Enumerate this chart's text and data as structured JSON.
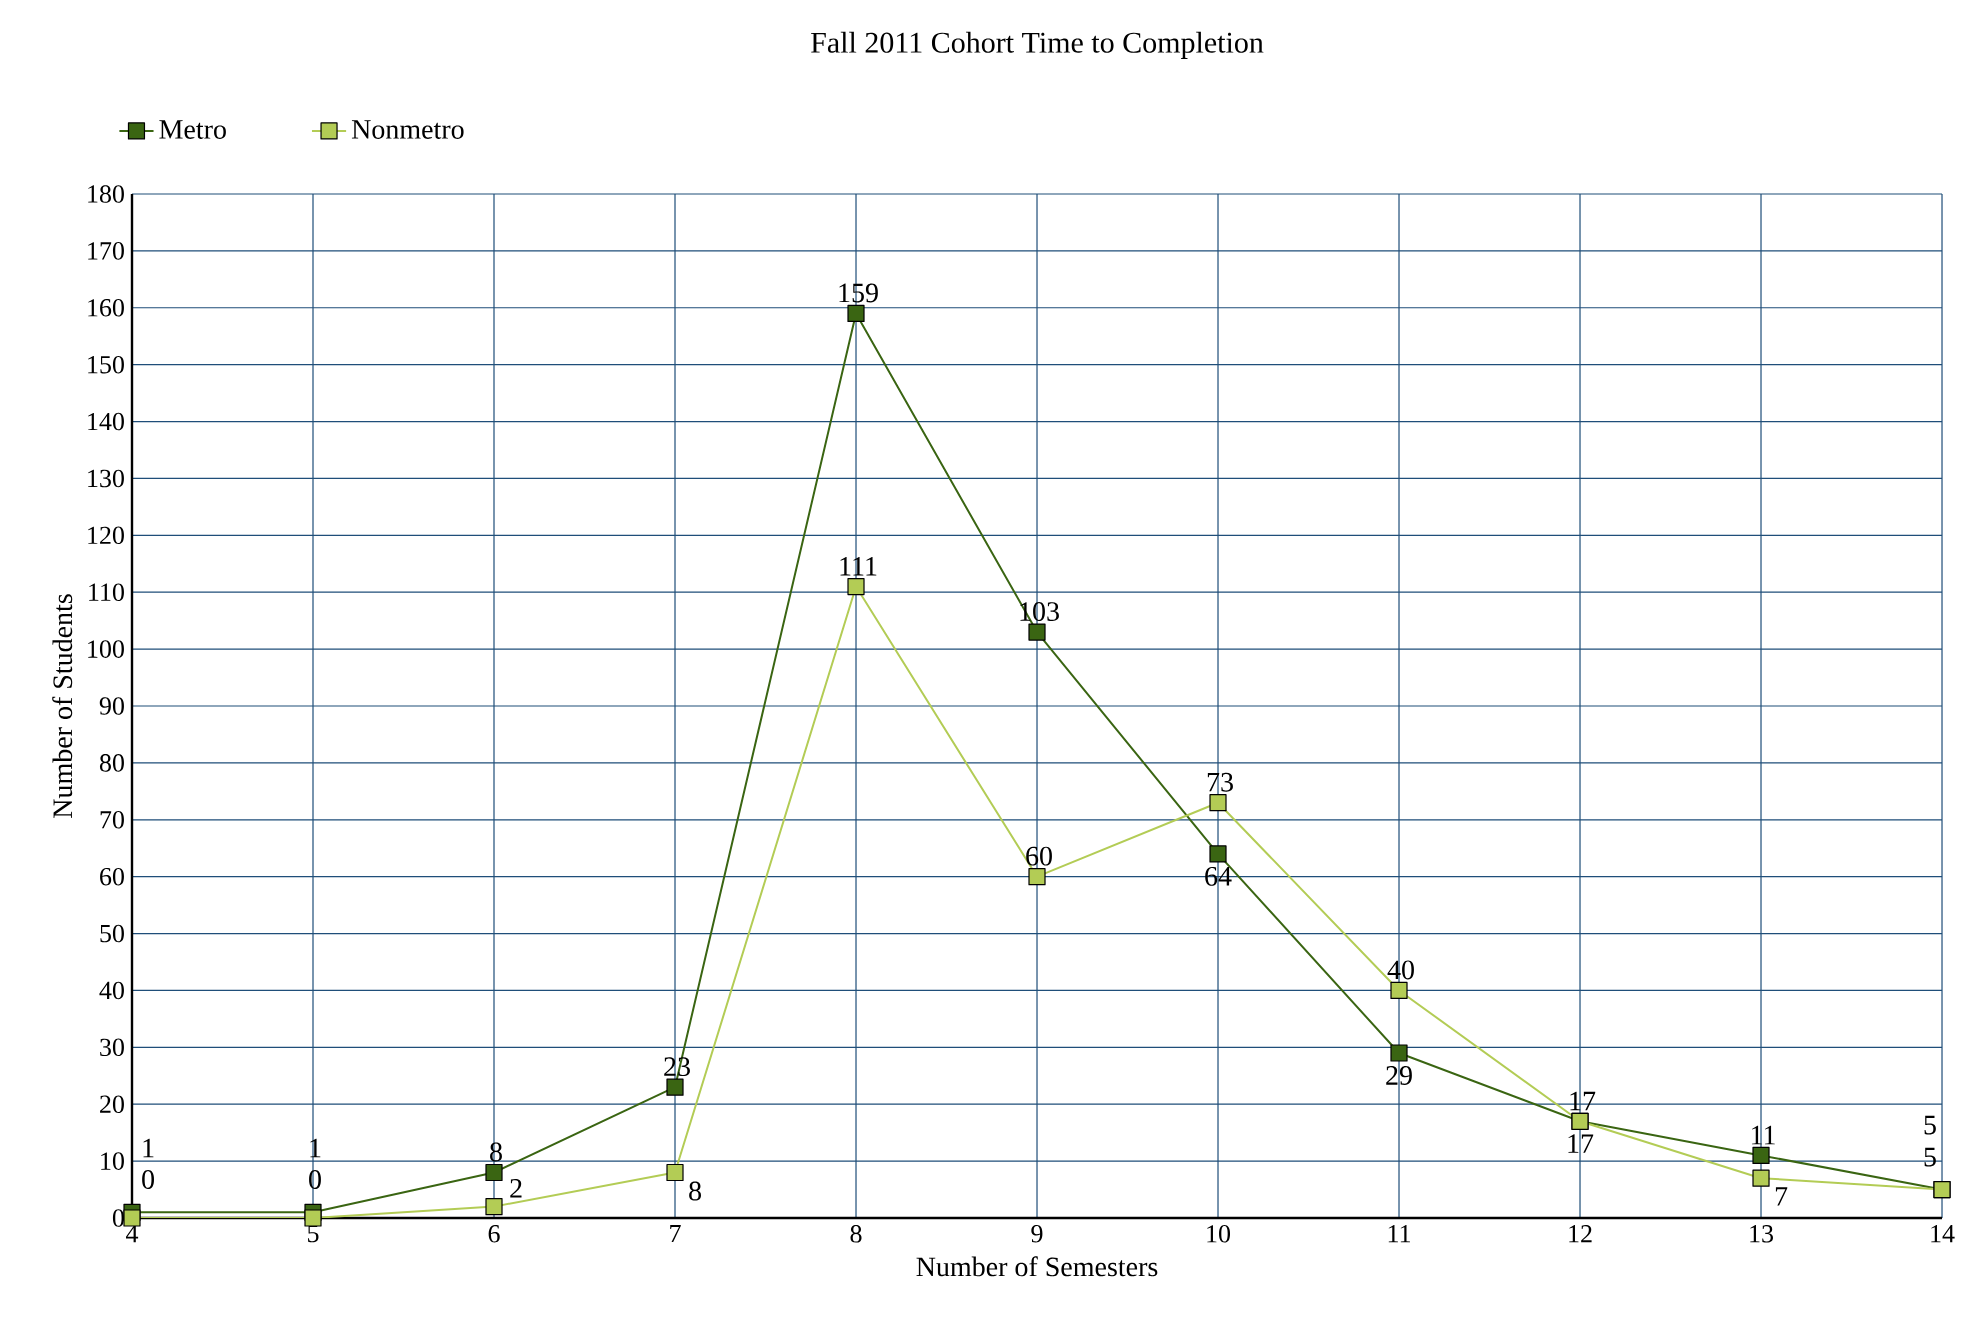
{
  "chart_data": {
    "type": "line",
    "title": "Fall 2011 Cohort Time to Completion",
    "xlabel": "Number of Semesters",
    "ylabel": "Number of Students",
    "x": [
      4,
      5,
      6,
      7,
      8,
      9,
      10,
      11,
      12,
      13,
      14
    ],
    "series": [
      {
        "name": "Metro",
        "color": "#3a6512",
        "values": [
          1,
          1,
          8,
          23,
          159,
          103,
          64,
          29,
          17,
          11,
          5
        ]
      },
      {
        "name": "Nonmetro",
        "color": "#b3cc55",
        "values": [
          0,
          0,
          2,
          8,
          111,
          60,
          73,
          40,
          17,
          7,
          5
        ]
      }
    ],
    "xlim": [
      4,
      14
    ],
    "xticks": [
      4,
      5,
      6,
      7,
      8,
      9,
      10,
      11,
      12,
      13,
      14
    ],
    "ylim": [
      0,
      180
    ],
    "yticks": [
      0,
      10,
      20,
      30,
      40,
      50,
      60,
      70,
      80,
      90,
      100,
      110,
      120,
      130,
      140,
      150,
      160,
      170,
      180
    ],
    "grid": true,
    "legend": "top left",
    "marker": "square",
    "line_style": "solid",
    "data_labels": true
  }
}
